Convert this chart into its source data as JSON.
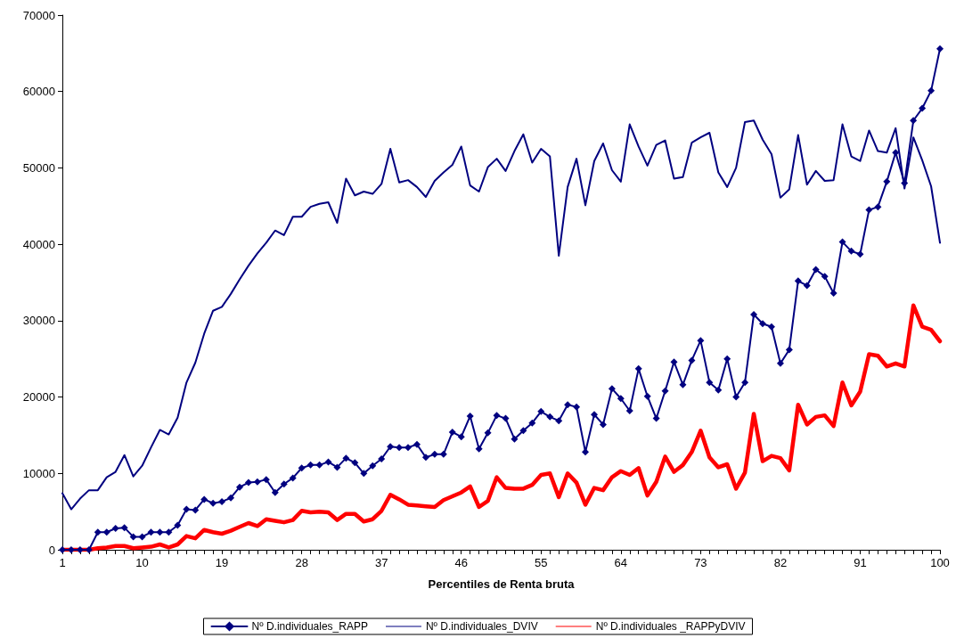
{
  "chart_data": {
    "type": "line",
    "xlabel": "Percentiles de Renta bruta",
    "categories": [
      "1",
      null,
      null,
      null,
      null,
      null,
      null,
      null,
      null,
      "10",
      null,
      null,
      null,
      null,
      null,
      null,
      null,
      null,
      "19",
      null,
      null,
      null,
      null,
      null,
      null,
      null,
      null,
      "28",
      null,
      null,
      null,
      null,
      null,
      null,
      null,
      null,
      "37",
      null,
      null,
      null,
      null,
      null,
      null,
      null,
      null,
      "46",
      null,
      null,
      null,
      null,
      null,
      null,
      null,
      null,
      "55",
      null,
      null,
      null,
      null,
      null,
      null,
      null,
      null,
      "64",
      null,
      null,
      null,
      null,
      null,
      null,
      null,
      null,
      "73",
      null,
      null,
      null,
      null,
      null,
      null,
      null,
      null,
      "82",
      null,
      null,
      null,
      null,
      null,
      null,
      null,
      null,
      "91",
      null,
      null,
      null,
      null,
      null,
      null,
      null,
      null,
      "100"
    ],
    "ylim": [
      0,
      70000
    ],
    "yticks": [
      0,
      10000,
      20000,
      30000,
      40000,
      50000,
      60000,
      70000
    ],
    "grid": false,
    "legend": "bottom",
    "series": [
      {
        "name": "Nº D.individuales_RAPP",
        "color": "#000080",
        "marker": "diamond",
        "line_style": "solid",
        "values": [
          0,
          0,
          0,
          0,
          2300,
          2300,
          2800,
          2900,
          1700,
          1700,
          2300,
          2300,
          2300,
          3200,
          5300,
          5200,
          6600,
          6100,
          6300,
          6800,
          8200,
          8800,
          8900,
          9200,
          7500,
          8600,
          9400,
          10700,
          11100,
          11100,
          11500,
          10800,
          12000,
          11400,
          10000,
          11000,
          11900,
          13500,
          13400,
          13400,
          13800,
          12100,
          12500,
          12500,
          15400,
          14800,
          17500,
          13200,
          15300,
          17600,
          17200,
          14500,
          15600,
          16600,
          18100,
          17400,
          16900,
          19000,
          18700,
          12800,
          17700,
          16400,
          21100,
          19800,
          18200,
          23700,
          20100,
          17200,
          20800,
          24600,
          21600,
          24800,
          27400,
          21900,
          20900,
          25000,
          20000,
          21900,
          30800,
          29600,
          29200,
          24400,
          26200,
          35200,
          34600,
          36700,
          35800,
          33600,
          40300,
          39100,
          38700,
          44500,
          44900,
          48200,
          52000,
          48000,
          56200,
          57800,
          60100,
          65600
        ]
      },
      {
        "name": "Nº D.individuales_DVIV",
        "color": "#000080",
        "marker": "none",
        "line_style": "solid",
        "values": [
          7400,
          5300,
          6700,
          7800,
          7800,
          9500,
          10200,
          12400,
          9600,
          11000,
          13400,
          15700,
          15100,
          17300,
          21900,
          24500,
          28300,
          31300,
          31800,
          33500,
          35400,
          37200,
          38800,
          40200,
          41800,
          41200,
          43600,
          43600,
          44900,
          45300,
          45500,
          42800,
          48600,
          46400,
          46900,
          46600,
          47900,
          52500,
          48100,
          48400,
          47500,
          46200,
          48300,
          49400,
          50400,
          52800,
          47700,
          46900,
          50100,
          51200,
          49600,
          52200,
          54400,
          50700,
          52500,
          51500,
          38500,
          47500,
          51200,
          45100,
          50900,
          53200,
          49700,
          48200,
          55700,
          52800,
          50300,
          53000,
          53600,
          48600,
          48800,
          53300,
          54000,
          54600,
          49400,
          47500,
          50000,
          56000,
          56200,
          53700,
          51800,
          46100,
          47200,
          54300,
          47800,
          49600,
          48300,
          48400,
          55700,
          51500,
          50900,
          54900,
          52200,
          52000,
          55200,
          47300,
          54000,
          51000,
          47600,
          40200
        ]
      },
      {
        "name": "Nº D.individuales _RAPPyDVIV",
        "color": "#ff0000",
        "marker": "none",
        "line_style": "solid",
        "values": [
          0,
          0,
          0,
          0,
          200,
          300,
          500,
          500,
          200,
          300,
          400,
          700,
          300,
          700,
          1800,
          1500,
          2600,
          2300,
          2100,
          2500,
          3000,
          3500,
          3100,
          4000,
          3800,
          3600,
          3900,
          5100,
          4900,
          5000,
          4900,
          3900,
          4700,
          4700,
          3700,
          4000,
          5100,
          7200,
          6600,
          5900,
          5800,
          5700,
          5600,
          6500,
          7000,
          7500,
          8300,
          5600,
          6400,
          9500,
          8100,
          8000,
          8000,
          8500,
          9800,
          10000,
          6900,
          10000,
          8800,
          5900,
          8100,
          7800,
          9500,
          10300,
          9800,
          10700,
          7100,
          8900,
          12200,
          10200,
          11100,
          12800,
          15600,
          12100,
          10800,
          11200,
          8000,
          10100,
          17800,
          11600,
          12300,
          12000,
          10400,
          19000,
          16400,
          17400,
          17600,
          16200,
          21900,
          18900,
          20700,
          25600,
          25400,
          24000,
          24400,
          24000,
          32000,
          29200,
          28800,
          27300
        ]
      }
    ]
  }
}
